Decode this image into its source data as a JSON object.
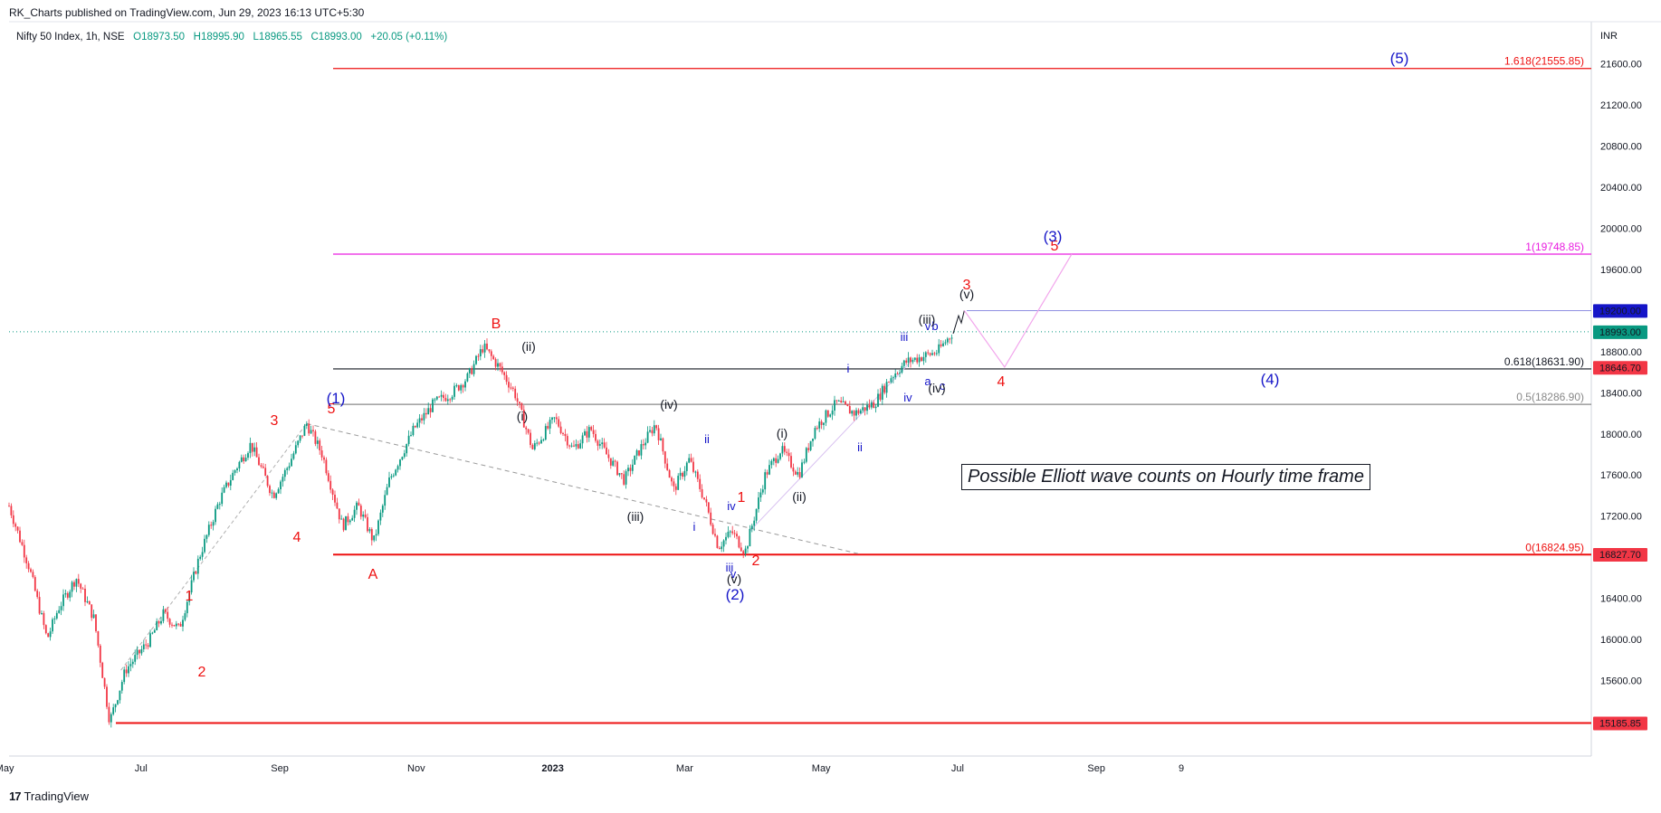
{
  "header": {
    "published": "RK_Charts published on TradingView.com, Jun 29, 2023 16:13 UTC+5:30",
    "symbol": "Nifty 50 Index, 1h, NSE",
    "open": "O18973.50",
    "high": "H18995.90",
    "low": "L18965.55",
    "close": "C18993.00",
    "change": "+20.05 (+0.11%)",
    "currency": "INR"
  },
  "footer": {
    "brand": "TradingView"
  },
  "note": "Possible Elliott wave counts on Hourly time frame",
  "colors": {
    "up": "#089981",
    "down": "#f23645",
    "red": "#ee1111",
    "blue": "#1515c8",
    "magenta": "#e91ee0",
    "black": "#131722"
  },
  "chart_data": {
    "type": "candlestick",
    "y_ticks": [
      "21600.00",
      "21200.00",
      "20800.00",
      "20400.00",
      "20000.00",
      "19600.00",
      "19200.00",
      "18800.00",
      "18400.00",
      "18000.00",
      "17600.00",
      "17200.00",
      "16800.00",
      "16400.00",
      "16000.00",
      "15600.00"
    ],
    "x_ticks": [
      "May",
      "Jul",
      "Sep",
      "Nov",
      "2023",
      "Mar",
      "May",
      "Jul",
      "Sep",
      "9"
    ],
    "price_badges": [
      {
        "value": "19200.00",
        "color": "#1515c8"
      },
      {
        "value": "18993.00",
        "color": "#089981"
      },
      {
        "value": "18646.70",
        "color": "#f23645"
      },
      {
        "value": "16827.70",
        "color": "#f23645"
      },
      {
        "value": "15185.85",
        "color": "#f23645"
      }
    ],
    "levels": [
      {
        "label": "1.618(21555.85)",
        "value": 21555.85,
        "color": "#ee1111"
      },
      {
        "label": "1(19748.85)",
        "value": 19748.85,
        "color": "#e91ee0"
      },
      {
        "label": "0.618(18631.90)",
        "value": 18631.9,
        "color": "#131722"
      },
      {
        "label": "0.5(18286.90)",
        "value": 18286.9,
        "color": "#888888"
      },
      {
        "label": "0(16824.95)",
        "value": 16824.95,
        "color": "#ee1111"
      }
    ],
    "price_path": [
      [
        "2022-05-03",
        17300
      ],
      [
        "2022-05-12",
        16700
      ],
      [
        "2022-05-20",
        16000
      ],
      [
        "2022-05-25",
        16300
      ],
      [
        "2022-06-02",
        16600
      ],
      [
        "2022-06-10",
        16200
      ],
      [
        "2022-06-17",
        15200
      ],
      [
        "2022-06-24",
        15700
      ],
      [
        "2022-07-05",
        16000
      ],
      [
        "2022-07-11",
        16250
      ],
      [
        "2022-07-18",
        16100
      ],
      [
        "2022-07-27",
        16800
      ],
      [
        "2022-08-05",
        17350
      ],
      [
        "2022-08-12",
        17650
      ],
      [
        "2022-08-19",
        17900
      ],
      [
        "2022-08-29",
        17400
      ],
      [
        "2022-09-05",
        17700
      ],
      [
        "2022-09-13",
        18100
      ],
      [
        "2022-09-20",
        17800
      ],
      [
        "2022-09-29",
        17100
      ],
      [
        "2022-10-06",
        17300
      ],
      [
        "2022-10-13",
        16950
      ],
      [
        "2022-10-20",
        17550
      ],
      [
        "2022-10-31",
        18050
      ],
      [
        "2022-11-09",
        18300
      ],
      [
        "2022-11-17",
        18400
      ],
      [
        "2022-11-24",
        18550
      ],
      [
        "2022-12-01",
        18850
      ],
      [
        "2022-12-08",
        18650
      ],
      [
        "2022-12-15",
        18400
      ],
      [
        "2022-12-23",
        17850
      ],
      [
        "2023-01-02",
        18150
      ],
      [
        "2023-01-10",
        17850
      ],
      [
        "2023-01-18",
        18050
      ],
      [
        "2023-01-25",
        17800
      ],
      [
        "2023-02-02",
        17550
      ],
      [
        "2023-02-09",
        17850
      ],
      [
        "2023-02-16",
        18100
      ],
      [
        "2023-02-24",
        17450
      ],
      [
        "2023-03-03",
        17750
      ],
      [
        "2023-03-10",
        17350
      ],
      [
        "2023-03-16",
        16900
      ],
      [
        "2023-03-22",
        17050
      ],
      [
        "2023-03-28",
        16850
      ],
      [
        "2023-04-06",
        17600
      ],
      [
        "2023-04-13",
        17850
      ],
      [
        "2023-04-21",
        17600
      ],
      [
        "2023-04-28",
        18050
      ],
      [
        "2023-05-08",
        18300
      ],
      [
        "2023-05-16",
        18200
      ],
      [
        "2023-05-25",
        18300
      ],
      [
        "2023-06-01",
        18550
      ],
      [
        "2023-06-08",
        18700
      ],
      [
        "2023-06-15",
        18750
      ],
      [
        "2023-06-22",
        18800
      ],
      [
        "2023-06-29",
        18993
      ]
    ],
    "projection": [
      [
        "2023-07-04",
        19200
      ],
      [
        "2023-07-22",
        18650
      ],
      [
        "2023-08-21",
        19748.85
      ]
    ],
    "wave_labels": {
      "red": [
        "5",
        "3",
        "4",
        "1",
        "2",
        "A",
        "B",
        "3",
        "1",
        "2",
        "5",
        "4"
      ],
      "blue": [
        "(1)",
        "(2)",
        "(3)",
        "(4)",
        "(5)",
        "ii",
        "i",
        "iv",
        "iii",
        "v",
        "i",
        "ii",
        "iii",
        "iv",
        "v",
        "a",
        "b",
        "c"
      ],
      "black": [
        "(ii)",
        "(i)",
        "(iv)",
        "(iii)",
        "(i)",
        "(ii)",
        "(iii)",
        "(iv)",
        "(v)",
        "(v)"
      ]
    }
  }
}
